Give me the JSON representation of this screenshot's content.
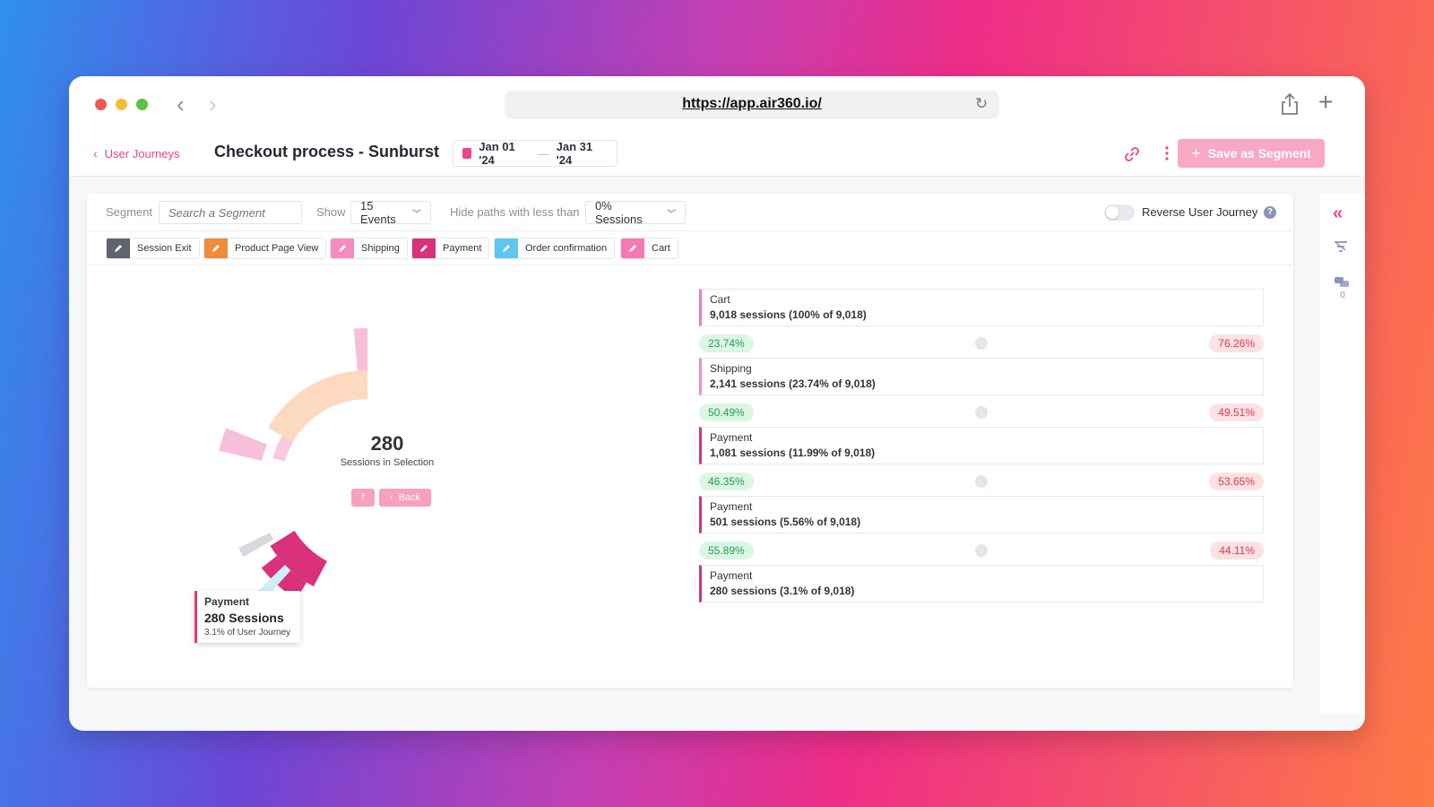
{
  "browser": {
    "url": "https://app.air360.io/",
    "back_glyph": "‹",
    "forward_glyph": "›",
    "reload_glyph": "↻",
    "new_tab_glyph": "+"
  },
  "header": {
    "breadcrumb": "User Journeys",
    "breadcrumb_chevron": "‹",
    "title": "Checkout process - Sunburst",
    "date_from": "Jan 01 '24",
    "date_to": "Jan 31 '24",
    "date_separator": "—",
    "save_plus": "+",
    "save_label": "Save as Segment"
  },
  "toolbar": {
    "segment_label": "Segment",
    "segment_placeholder": "Search a Segment",
    "show_label": "Show",
    "show_value": "15 Events",
    "hide_label": "Hide paths with less than",
    "hide_value": "0% Sessions",
    "dropdown_chevron": "﹀",
    "reverse_label": "Reverse User Journey",
    "help_glyph": "?"
  },
  "legend": [
    {
      "label": "Session Exit",
      "color": "#5f6470"
    },
    {
      "label": "Product Page View",
      "color": "#f28a3c"
    },
    {
      "label": "Shipping",
      "color": "#f58cc0"
    },
    {
      "label": "Payment",
      "color": "#d9317a"
    },
    {
      "label": "Order confirmation",
      "color": "#5ec6ef"
    },
    {
      "label": "Cart",
      "color": "#f778b2"
    }
  ],
  "sunburst": {
    "center_value": "280",
    "center_label": "Sessions in Selection",
    "up_glyph": "⤒",
    "back_chevron": "‹",
    "back_label": "Back",
    "tooltip": {
      "title": "Payment",
      "sessions": "280 Sessions",
      "share": "3.1% of User Journey"
    }
  },
  "steps": [
    {
      "name": "Cart",
      "sessions": "9,018 sessions (100% of 9,018)",
      "color": "#f778b2"
    },
    {
      "name": "Shipping",
      "sessions": "2,141 sessions (23.74% of 9,018)",
      "color": "#f58cc0"
    },
    {
      "name": "Payment",
      "sessions": "1,081 sessions (11.99% of 9,018)",
      "color": "#d9317a"
    },
    {
      "name": "Payment",
      "sessions": "501 sessions (5.56% of 9,018)",
      "color": "#d9317a"
    },
    {
      "name": "Payment",
      "sessions": "280 sessions (3.1% of 9,018)",
      "color": "#d9317a"
    }
  ],
  "conversions": [
    {
      "continued": "23.74%",
      "dropped": "76.26%"
    },
    {
      "continued": "50.49%",
      "dropped": "49.51%"
    },
    {
      "continued": "46.35%",
      "dropped": "53.65%"
    },
    {
      "continued": "55.89%",
      "dropped": "44.11%"
    }
  ],
  "conversion_arrow_glyph": "↓",
  "rail": {
    "collapse_glyph": "«",
    "comments_count": "0"
  }
}
